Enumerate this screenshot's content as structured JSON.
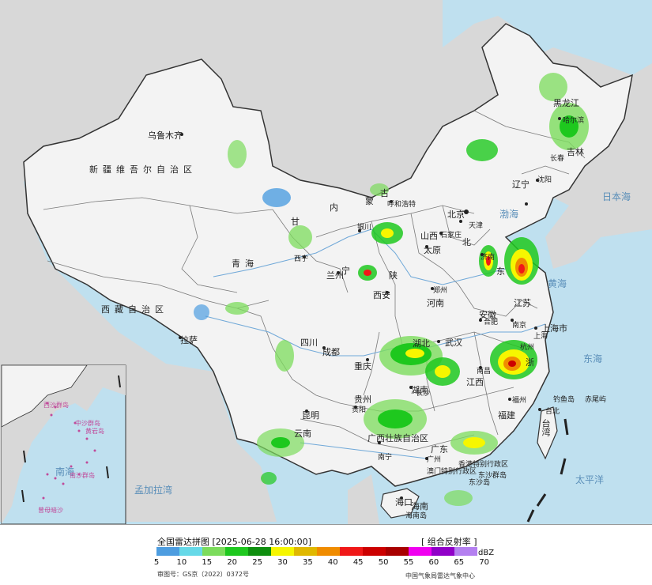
{
  "map": {
    "colors": {
      "ocean": "#bfe0ef",
      "land": "#f3f3f3",
      "foreign": "#d8d8d8",
      "border": "#333333",
      "province": "#7a7a7a",
      "river": "#6fa8d8"
    },
    "labels": {
      "urumqi": "乌鲁木齐",
      "xinjiang": "新疆维吾尔自治区",
      "tibet": "西藏自治区",
      "lhasa": "拉萨",
      "qinghai": "青海",
      "xining": "西宁",
      "gansu": "甘",
      "lanzhou": "兰州",
      "innermongolia_a": "内",
      "innermongolia_b": "蒙",
      "innermongolia_c": "古",
      "hohhot": "呼和浩特",
      "ningxia": "宁",
      "yinchuan": "银川",
      "shaanxi": "陕",
      "xian": "西安",
      "shanxi": "山西",
      "taiyuan": "太原",
      "beijing": "北京",
      "tianjin": "天津",
      "shijiazhuang": "石家庄",
      "hebei": "北",
      "shandong": "东",
      "jinan": "济南",
      "henan": "河南",
      "zhengzhou": "郑州",
      "hubei": "湖北",
      "wuhan": "武汉",
      "anhui": "安徽",
      "hefei": "合肥",
      "jiangsu": "江苏",
      "nanjing": "南京",
      "shanghai": "上海市",
      "shanghai_city": "上海",
      "zhejiang": "浙",
      "hangzhou": "杭州",
      "sichuan": "四川",
      "chengdu": "成都",
      "chongqing": "重庆",
      "guizhou": "贵州",
      "guiyang": "贵阳",
      "yunnan": "云南",
      "kunming": "昆明",
      "hunan": "湖南",
      "changsha": "长沙",
      "jiangxi": "江西",
      "nanchang": "南昌",
      "fujian": "福建",
      "fuzhou": "福州",
      "guangxi": "广西壮族自治区",
      "nanning": "南宁",
      "guangdong": "广东",
      "guangzhou": "广州",
      "hk_macau": "香港特别行政区",
      "macau": "澳门特别行政区",
      "dongsha": "东沙群岛",
      "dongsha_island": "东沙岛",
      "hainan": "海南",
      "haikou": "海口",
      "hainan_island": "海南岛",
      "taiwan": "台湾",
      "taipei": "台北",
      "diaoyu": "钓鱼岛",
      "chiwei": "赤尾屿",
      "liaoning": "辽宁",
      "shenyang": "沈阳",
      "jilin": "吉林",
      "changchun": "长春",
      "heilongjiang": "黑龙江",
      "harbin": "哈尔滨",
      "japan_sea": "日本海",
      "yellow_sea": "黄海",
      "east_sea": "东海",
      "pacific": "太平洋",
      "bay_bengal": "孟加拉湾",
      "south_sea": "南海",
      "bohai": "渤海"
    },
    "inset_labels": {
      "south_sea": "南海",
      "zhongsha": "中沙群岛",
      "nansha": "南沙群岛",
      "huangyan": "黄岩岛",
      "xisha": "西沙群岛",
      "zengmu": "曾母暗沙"
    }
  },
  "legend": {
    "title": "全国雷达拼图 [2025-06-28 16:00:00]",
    "product": "[ 组合反射率 ]",
    "unit": "dBZ",
    "colors": [
      "#4d9de0",
      "#66d9e8",
      "#7cdc5c",
      "#1ec81e",
      "#0f8f0f",
      "#f6f600",
      "#e0b800",
      "#f08c00",
      "#f01818",
      "#cc0000",
      "#a80000",
      "#f000f0",
      "#9000c8",
      "#b480f0"
    ],
    "ticks": [
      "5",
      "10",
      "15",
      "20",
      "25",
      "30",
      "35",
      "40",
      "45",
      "50",
      "55",
      "60",
      "65",
      "70"
    ],
    "approval": "审图号：GS京（2022）0372号",
    "credit": "中国气象局雷达气象中心"
  }
}
